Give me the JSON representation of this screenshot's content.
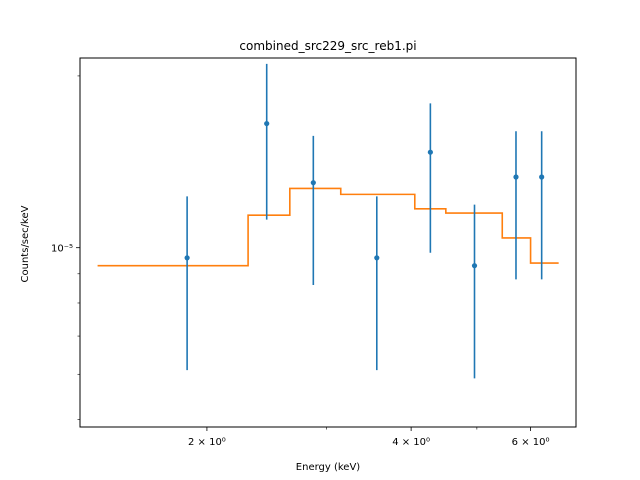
{
  "chart_data": {
    "type": "scatter",
    "title": "combined_src229_src_reb1.pi",
    "xlabel": "Energy (keV)",
    "ylabel": "Counts/sec/keV",
    "xscale": "log",
    "yscale": "log",
    "xlim": [
      1.3,
      7.0
    ],
    "ylim": [
      4.85e-06,
      2.15e-05
    ],
    "x_tick_values": [
      2,
      4,
      6
    ],
    "x_tick_labels": [
      "2 × 10⁰",
      "4 × 10⁰",
      "6 × 10⁰"
    ],
    "x_minor_ticks": [
      3,
      5
    ],
    "y_tick_values": [
      1e-05
    ],
    "y_tick_labels": [
      "10⁻⁵"
    ],
    "y_minor_ticks": [
      5e-06,
      6e-06,
      7e-06,
      8e-06,
      9e-06,
      2e-05
    ],
    "grid": false,
    "series": [
      {
        "kind": "errorbar",
        "color": "#1f77b4",
        "x": [
          1.87,
          2.45,
          2.87,
          3.56,
          4.27,
          4.96,
          5.71,
          6.23
        ],
        "y": [
          9.6e-06,
          1.65e-05,
          1.3e-05,
          9.6e-06,
          1.47e-05,
          9.3e-06,
          1.33e-05,
          1.33e-05
        ],
        "yerr_low": [
          6.1e-06,
          1.12e-05,
          8.6e-06,
          6.1e-06,
          9.8e-06,
          5.9e-06,
          8.8e-06,
          8.8e-06
        ],
        "yerr_high": [
          1.23e-05,
          2.1e-05,
          1.57e-05,
          1.23e-05,
          1.79e-05,
          1.19e-05,
          1.6e-05,
          1.6e-05
        ]
      },
      {
        "kind": "step",
        "color": "#ff7f0e",
        "bins": [
          {
            "x0": 1.38,
            "x1": 2.3,
            "y": 9.3e-06
          },
          {
            "x0": 2.3,
            "x1": 2.65,
            "y": 1.14e-05
          },
          {
            "x0": 2.65,
            "x1": 3.15,
            "y": 1.27e-05
          },
          {
            "x0": 3.15,
            "x1": 4.05,
            "y": 1.24e-05
          },
          {
            "x0": 4.05,
            "x1": 4.5,
            "y": 1.17e-05
          },
          {
            "x0": 4.5,
            "x1": 5.45,
            "y": 1.15e-05
          },
          {
            "x0": 5.45,
            "x1": 6.0,
            "y": 1.04e-05
          },
          {
            "x0": 6.0,
            "x1": 6.6,
            "y": 9.4e-06
          }
        ]
      }
    ]
  }
}
